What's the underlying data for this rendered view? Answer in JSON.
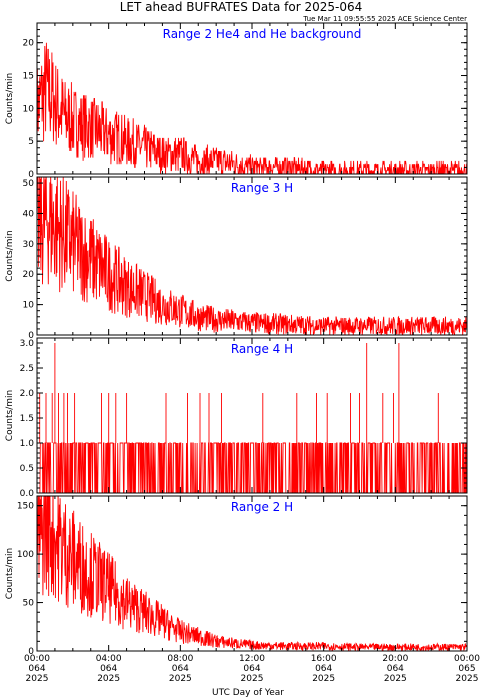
{
  "title": "LET ahead BUFRATES Data for 2025-064",
  "timestamp": "Tue Mar 11 09:55:55 2025 ACE Science Center",
  "xlabel": "UTC Day of Year",
  "colors": {
    "series": "#ff0000",
    "panel_title": "#0000ff",
    "axes": "#000000"
  },
  "x_ticks": [
    {
      "time": "00:00",
      "day": "064",
      "year": "2025"
    },
    {
      "time": "04:00",
      "day": "064",
      "year": "2025"
    },
    {
      "time": "08:00",
      "day": "064",
      "year": "2025"
    },
    {
      "time": "12:00",
      "day": "064",
      "year": "2025"
    },
    {
      "time": "16:00",
      "day": "064",
      "year": "2025"
    },
    {
      "time": "20:00",
      "day": "064",
      "year": "2025"
    },
    {
      "time": "00:00",
      "day": "065",
      "year": "2025"
    }
  ],
  "chart_data": [
    {
      "type": "line",
      "title": "Range 2 He4 and He background",
      "ylabel": "Counts/min",
      "xlim_hours": [
        0,
        24
      ],
      "ylim": [
        0,
        23
      ],
      "y_ticks": [
        0,
        5,
        10,
        15,
        20
      ],
      "series": [
        {
          "x_hours": [
            0,
            0.5,
            1,
            1.5,
            2,
            3,
            4,
            5,
            6,
            7,
            8,
            9,
            10,
            11,
            12,
            14,
            16,
            18,
            20,
            22,
            24
          ],
          "values": [
            10,
            13,
            11,
            9,
            8,
            7,
            6,
            5,
            4,
            3,
            3,
            2,
            2,
            1.5,
            1,
            1,
            0.5,
            0.5,
            0.5,
            0.5,
            0.5
          ]
        }
      ]
    },
    {
      "type": "line",
      "title": "Range 3 H",
      "ylabel": "Counts/min",
      "xlim_hours": [
        0,
        24
      ],
      "ylim": [
        0,
        52
      ],
      "y_ticks": [
        0,
        10,
        20,
        30,
        40,
        50
      ],
      "series": [
        {
          "x_hours": [
            0,
            0.5,
            1,
            1.5,
            2,
            3,
            4,
            5,
            6,
            7,
            8,
            9,
            10,
            11,
            12,
            14,
            16,
            18,
            20,
            22,
            24
          ],
          "values": [
            35,
            38,
            36,
            33,
            30,
            25,
            20,
            16,
            13,
            10,
            8,
            6,
            5,
            4.5,
            4,
            3.5,
            3,
            3,
            3,
            3,
            3
          ]
        }
      ]
    },
    {
      "type": "line",
      "title": "Range 4 H",
      "ylabel": "Counts/min",
      "xlim_hours": [
        0,
        24
      ],
      "ylim": [
        0,
        3.1
      ],
      "y_ticks": [
        0.0,
        0.5,
        1.0,
        1.5,
        2.0,
        2.5,
        3.0
      ],
      "series": [
        {
          "x_hours": [
            0.15,
            0.5,
            0.85,
            1.0,
            1.2,
            1.5,
            1.7,
            2.1,
            3.6,
            4.0,
            4.4,
            5.0,
            7.2,
            8.4,
            9.1,
            9.6,
            10.3,
            12.6,
            14.5,
            15.6,
            16.2,
            17.5,
            18.0,
            18.4,
            19.3,
            19.9,
            20.2,
            22.4
          ],
          "values": [
            2,
            2,
            2,
            3,
            2,
            2,
            2,
            2,
            2,
            2,
            2,
            2,
            2,
            2,
            2,
            2,
            2,
            2,
            2,
            2,
            2,
            2,
            2,
            3,
            2,
            2,
            3,
            2
          ]
        }
      ],
      "baseline_alternates": [
        0,
        1
      ]
    },
    {
      "type": "line",
      "title": "Range 2 H",
      "ylabel": "Counts/min",
      "xlim_hours": [
        0,
        24
      ],
      "ylim": [
        0,
        160
      ],
      "y_ticks": [
        0,
        50,
        100,
        150
      ],
      "series": [
        {
          "x_hours": [
            0,
            0.5,
            1,
            1.5,
            2,
            3,
            4,
            5,
            6,
            7,
            8,
            9,
            10,
            11,
            12,
            14,
            16,
            18,
            20,
            22,
            24
          ],
          "values": [
            110,
            130,
            118,
            105,
            95,
            80,
            65,
            50,
            40,
            30,
            20,
            15,
            10,
            8,
            6,
            5,
            5,
            4,
            4,
            4,
            4
          ]
        }
      ]
    }
  ]
}
